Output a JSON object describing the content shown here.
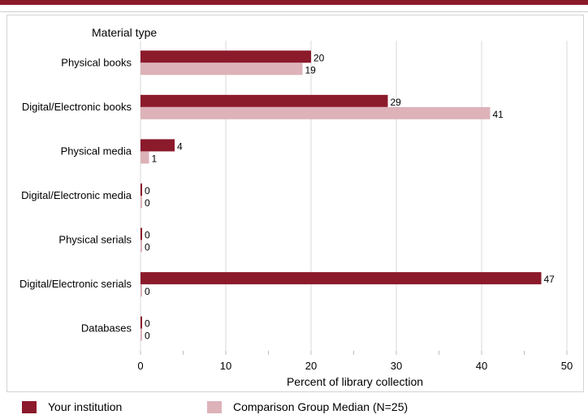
{
  "chart_data": {
    "type": "bar",
    "orientation": "horizontal",
    "y_axis_title": "Material type",
    "xlabel": "Percent of library collection",
    "xlim": [
      0,
      50
    ],
    "xticks": [
      0,
      10,
      20,
      30,
      40,
      50
    ],
    "categories": [
      "Physical books",
      "Digital/Electronic books",
      "Physical media",
      "Digital/Electronic media",
      "Physical serials",
      "Digital/Electronic serials",
      "Databases"
    ],
    "series": [
      {
        "name": "Your institution",
        "color": "#8b1a2b",
        "values": [
          20,
          29,
          4,
          0,
          0,
          47,
          0
        ]
      },
      {
        "name": "Comparison Group Median (N=25)",
        "color": "#ddb2b9",
        "values": [
          19,
          41,
          1,
          0,
          0,
          0,
          0
        ]
      }
    ],
    "grid": true,
    "legend_position": "bottom"
  },
  "legend": {
    "your_institution": "Your institution",
    "comparison": "Comparison Group Median (N=25)"
  }
}
